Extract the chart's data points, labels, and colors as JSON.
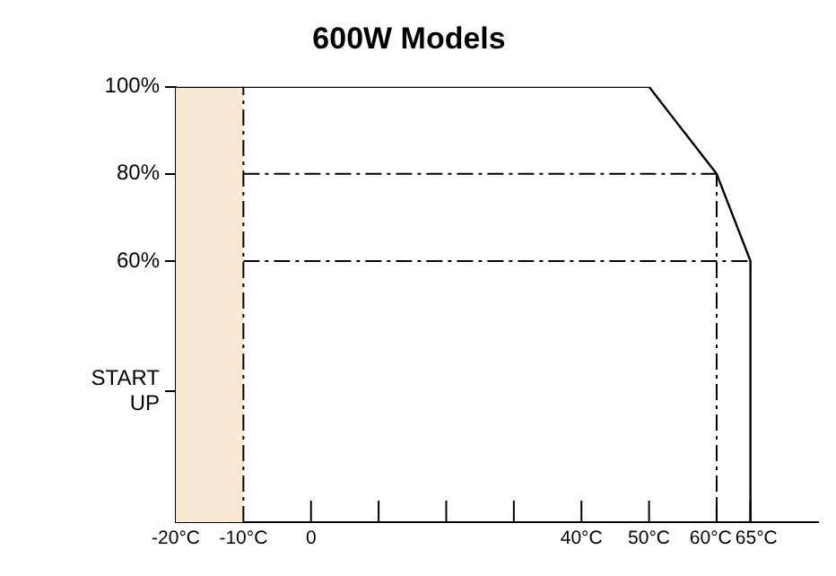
{
  "chart_data": {
    "type": "line",
    "title": "600W Models",
    "x": [
      -20,
      50,
      60,
      65,
      65
    ],
    "series": [
      {
        "color": "#000000",
        "values": [
          100,
          100,
          80,
          60,
          0
        ]
      }
    ],
    "xlim": [
      -20,
      75
    ],
    "xticks": [
      {
        "value": -20,
        "label": "-20°C"
      },
      {
        "value": -10,
        "label": "-10°C"
      },
      0,
      {
        "value": 10,
        "label": null
      },
      {
        "value": 20,
        "label": null
      },
      {
        "value": 30,
        "label": null
      },
      {
        "value": 40,
        "label": "40°C"
      },
      {
        "value": 50,
        "label": "50°C"
      },
      {
        "value": 60,
        "label": "60°C"
      },
      {
        "value": 65,
        "label": "65°C"
      }
    ],
    "ylim": [
      0,
      100
    ],
    "yticks": [
      {
        "value": 30,
        "label": "START UP"
      },
      {
        "value": 60,
        "label": "60%"
      },
      {
        "value": 80,
        "label": "80%"
      },
      {
        "value": 100,
        "label": "100%"
      }
    ],
    "bands": [
      {
        "axis": "x",
        "from": -20,
        "to": -10,
        "color": "#f9e9d4"
      }
    ],
    "ref_lines": [
      {
        "axis": "x",
        "value": -10,
        "line_style": "dashed"
      },
      {
        "axis": "x",
        "value": 60,
        "line_style": "dashed"
      },
      {
        "axis": "y",
        "value": 80,
        "line_style": "dashed"
      },
      {
        "axis": "y",
        "value": 60,
        "line_style": "dashed"
      }
    ],
    "grid": false,
    "legend": false,
    "marker": "none",
    "line_style": "solid"
  }
}
